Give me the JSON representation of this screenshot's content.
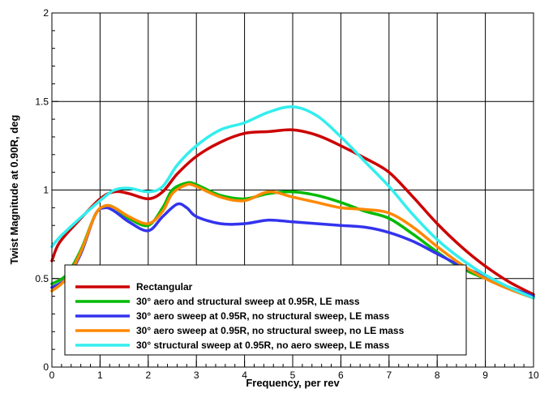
{
  "chart_data": {
    "type": "line",
    "title": "",
    "xlabel": "Frequency, per rev",
    "ylabel": "Twist Magnitude at 0.90R, deg",
    "xlim": [
      0,
      10
    ],
    "ylim": [
      0,
      2
    ],
    "x_ticks": [
      "0",
      "1",
      "2",
      "3",
      "4",
      "5",
      "6",
      "7",
      "8",
      "9",
      "10"
    ],
    "y_ticks": [
      "0",
      "0.5",
      "1",
      "1.5",
      "2"
    ],
    "grid": true,
    "legend_position": "bottom-left",
    "series": [
      {
        "name": "Rectangular",
        "color": "#cc0000",
        "x": [
          0,
          0.15,
          0.5,
          1.0,
          1.3,
          1.6,
          2.0,
          2.3,
          2.6,
          3.0,
          3.5,
          4.0,
          4.5,
          5.0,
          5.5,
          6.0,
          6.5,
          7.0,
          7.5,
          8.0,
          8.5,
          9.0,
          9.5,
          10.0
        ],
        "y": [
          0.6,
          0.7,
          0.81,
          0.95,
          0.99,
          0.98,
          0.95,
          0.99,
          1.09,
          1.19,
          1.27,
          1.32,
          1.33,
          1.34,
          1.31,
          1.25,
          1.18,
          1.1,
          0.96,
          0.81,
          0.68,
          0.57,
          0.48,
          0.41
        ]
      },
      {
        "name": "30° aero and structural sweep at 0.95R, LE mass",
        "color": "#00bb00",
        "x": [
          0,
          0.3,
          0.6,
          0.9,
          1.1,
          1.3,
          1.6,
          2.0,
          2.3,
          2.5,
          2.8,
          3.0,
          3.5,
          4.0,
          4.5,
          5.0,
          5.5,
          6.0,
          6.5,
          7.0,
          7.5,
          8.0,
          8.5,
          9.0,
          9.5,
          10.0
        ],
        "y": [
          0.47,
          0.52,
          0.66,
          0.86,
          0.91,
          0.9,
          0.84,
          0.8,
          0.9,
          1.0,
          1.04,
          1.03,
          0.97,
          0.95,
          0.98,
          0.99,
          0.97,
          0.93,
          0.88,
          0.84,
          0.75,
          0.65,
          0.56,
          0.5,
          0.45,
          0.4
        ]
      },
      {
        "name": "30° aero sweep at 0.95R, no structural sweep, LE mass",
        "color": "#3333ee",
        "x": [
          0,
          0.3,
          0.6,
          0.9,
          1.1,
          1.3,
          1.6,
          2.0,
          2.3,
          2.6,
          2.8,
          3.0,
          3.5,
          4.0,
          4.5,
          5.0,
          5.5,
          6.0,
          6.5,
          7.0,
          7.5,
          8.0,
          8.5,
          9.0,
          9.5,
          10.0
        ],
        "y": [
          0.45,
          0.5,
          0.64,
          0.86,
          0.9,
          0.88,
          0.82,
          0.77,
          0.85,
          0.92,
          0.9,
          0.85,
          0.81,
          0.81,
          0.83,
          0.82,
          0.81,
          0.8,
          0.79,
          0.76,
          0.71,
          0.64,
          0.57,
          0.51,
          0.45,
          0.4
        ]
      },
      {
        "name": "30° aero sweep at 0.95R, no structural sweep, no LE mass",
        "color": "#ff8800",
        "x": [
          0,
          0.3,
          0.6,
          0.9,
          1.1,
          1.3,
          1.6,
          2.0,
          2.3,
          2.5,
          2.8,
          3.0,
          3.5,
          4.0,
          4.5,
          5.0,
          5.5,
          6.0,
          6.5,
          7.0,
          7.5,
          8.0,
          8.5,
          9.0,
          9.5,
          10.0
        ],
        "y": [
          0.43,
          0.5,
          0.65,
          0.86,
          0.91,
          0.9,
          0.85,
          0.81,
          0.88,
          0.98,
          1.03,
          1.02,
          0.96,
          0.94,
          0.99,
          0.96,
          0.93,
          0.9,
          0.89,
          0.87,
          0.79,
          0.68,
          0.58,
          0.5,
          0.44,
          0.39
        ]
      },
      {
        "name": "30° structural sweep at 0.95R, no aero sweep, LE mass",
        "color": "#33eeee",
        "x": [
          0,
          0.15,
          0.5,
          1.0,
          1.3,
          1.6,
          2.0,
          2.3,
          2.6,
          3.0,
          3.5,
          4.0,
          4.5,
          5.0,
          5.5,
          6.0,
          6.5,
          7.0,
          7.5,
          8.0,
          8.5,
          9.0,
          9.5,
          10.0
        ],
        "y": [
          0.68,
          0.73,
          0.82,
          0.94,
          1.0,
          1.01,
          0.99,
          1.02,
          1.14,
          1.25,
          1.34,
          1.38,
          1.44,
          1.47,
          1.42,
          1.3,
          1.16,
          1.02,
          0.86,
          0.72,
          0.61,
          0.52,
          0.45,
          0.39
        ]
      }
    ]
  }
}
